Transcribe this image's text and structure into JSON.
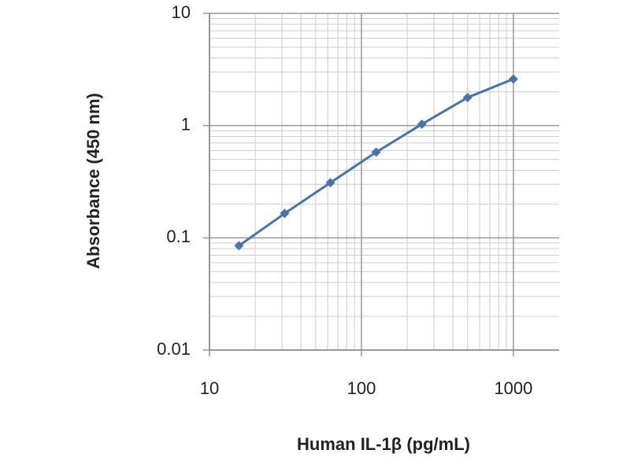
{
  "chart_data": {
    "type": "line",
    "x_label": "Human IL-1β (pg/mL)",
    "y_label": "Absorbance (450 nm)",
    "x": [
      15.625,
      31.25,
      62.5,
      125,
      250,
      500,
      1000
    ],
    "series": [
      {
        "color": "#4a74a8",
        "values": [
          0.085,
          0.165,
          0.31,
          0.58,
          1.03,
          1.78,
          2.6
        ]
      }
    ],
    "xlim": [
      10,
      2000
    ],
    "ylim": [
      0.01,
      10
    ],
    "xticks": [
      10,
      100,
      1000
    ],
    "yticks": [
      0.01,
      0.1,
      1,
      10
    ],
    "xlog": true,
    "ylog": true,
    "grid": true
  }
}
